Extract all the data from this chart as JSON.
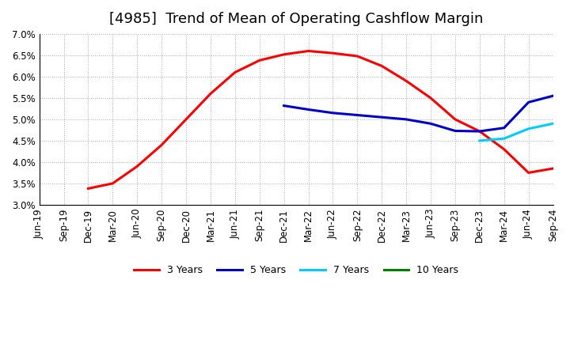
{
  "title": "[4985]  Trend of Mean of Operating Cashflow Margin",
  "ylim": [
    0.03,
    0.07
  ],
  "yticks": [
    0.03,
    0.035,
    0.04,
    0.045,
    0.05,
    0.055,
    0.06,
    0.065,
    0.07
  ],
  "xtick_labels": [
    "Jun-19",
    "Sep-19",
    "Dec-19",
    "Mar-20",
    "Jun-20",
    "Sep-20",
    "Dec-20",
    "Mar-21",
    "Jun-21",
    "Sep-21",
    "Dec-21",
    "Mar-22",
    "Jun-22",
    "Sep-22",
    "Dec-22",
    "Mar-23",
    "Jun-23",
    "Sep-23",
    "Dec-23",
    "Mar-24",
    "Jun-24",
    "Sep-24"
  ],
  "series_3y": {
    "color": "#FF0000",
    "label": "3 Years",
    "x": [
      2,
      3,
      4,
      5,
      6,
      7,
      8,
      9,
      10,
      11,
      12,
      13,
      14,
      15,
      16,
      17,
      18,
      19,
      20,
      21
    ],
    "y": [
      0.0338,
      0.035,
      0.039,
      0.044,
      0.05,
      0.056,
      0.061,
      0.0638,
      0.0652,
      0.066,
      0.0655,
      0.0648,
      0.0625,
      0.059,
      0.055,
      0.05,
      0.0472,
      0.043,
      0.0375,
      0.0385
    ]
  },
  "series_5y": {
    "color": "#0000CC",
    "label": "5 Years",
    "x": [
      10,
      11,
      12,
      13,
      14,
      15,
      16,
      17,
      18,
      19,
      20,
      21
    ],
    "y": [
      0.0532,
      0.0523,
      0.0515,
      0.051,
      0.0505,
      0.05,
      0.049,
      0.0473,
      0.0472,
      0.048,
      0.054,
      0.0555
    ]
  },
  "series_7y": {
    "color": "#00CCFF",
    "label": "7 Years",
    "x": [
      18,
      19,
      20,
      21
    ],
    "y": [
      0.045,
      0.0455,
      0.0478,
      0.049
    ]
  },
  "series_10y": {
    "color": "#008000",
    "label": "10 Years",
    "x": [],
    "y": []
  },
  "background_color": "#FFFFFF",
  "grid_color": "#AAAAAA",
  "title_fontsize": 13,
  "tick_fontsize": 8.5,
  "legend_fontsize": 9,
  "line_width": 2.2
}
